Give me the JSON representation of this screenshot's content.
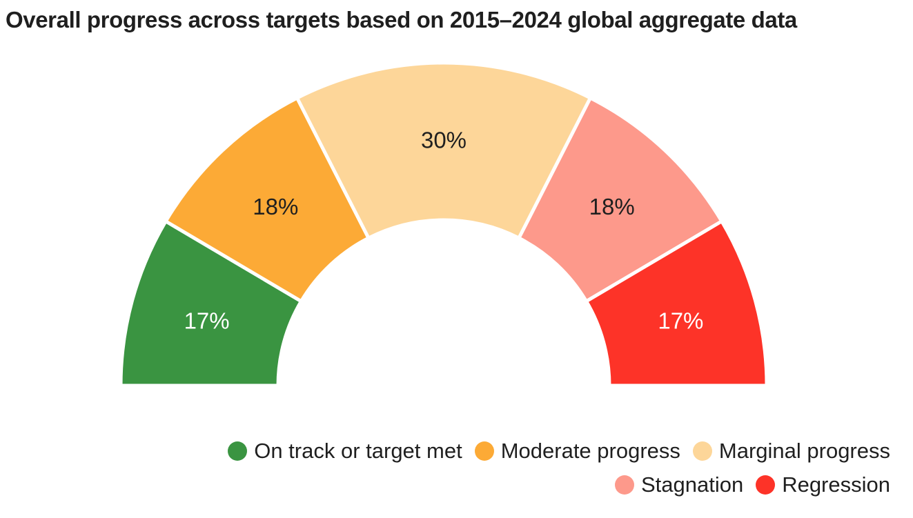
{
  "chart_data": {
    "type": "pie",
    "variant": "semi-donut gauge",
    "title": "Overall progress across targets based on 2015–2024 global aggregate data",
    "categories": [
      "On track or target met",
      "Moderate progress",
      "Marginal progress",
      "Stagnation",
      "Regression"
    ],
    "values": [
      17,
      18,
      30,
      18,
      17
    ],
    "labels": [
      "17%",
      "18%",
      "30%",
      "18%",
      "17%"
    ],
    "colors": [
      "#3a9441",
      "#fcaa36",
      "#fdd699",
      "#fd998b",
      "#fd3328"
    ],
    "label_colors": [
      "#ffffff",
      "#1f1f1f",
      "#1f1f1f",
      "#1f1f1f",
      "#ffffff"
    ],
    "legend_position": "bottom-right",
    "legend_rows": [
      [
        0,
        1,
        2
      ],
      [
        3,
        4
      ]
    ]
  }
}
